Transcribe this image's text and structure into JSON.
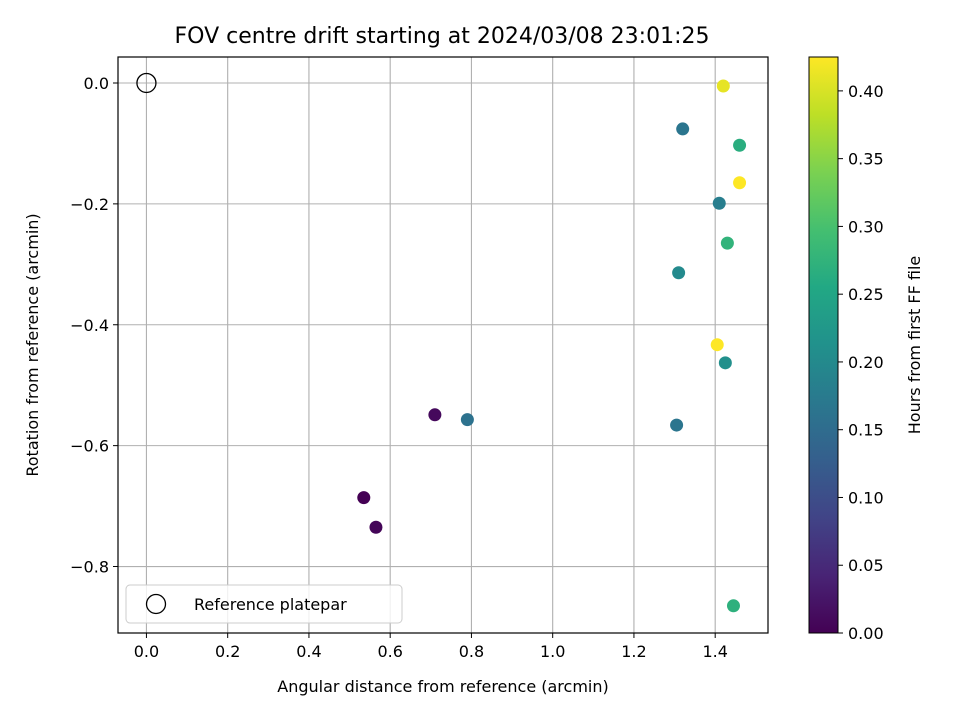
{
  "chart_data": {
    "type": "scatter",
    "title": "FOV centre drift starting at 2024/03/08 23:01:25",
    "xlabel": "Angular distance from reference (arcmin)",
    "ylabel": "Rotation from reference (arcmin)",
    "xlim": [
      -0.07,
      1.53
    ],
    "ylim": [
      -0.91,
      0.043
    ],
    "grid": true,
    "legend": {
      "placement": "lower-left",
      "entries": [
        "Reference platepar"
      ]
    },
    "xticks": [
      {
        "value": 0.0,
        "label": "0.0"
      },
      {
        "value": 0.2,
        "label": "0.2"
      },
      {
        "value": 0.4,
        "label": "0.4"
      },
      {
        "value": 0.6,
        "label": "0.6"
      },
      {
        "value": 0.8,
        "label": "0.8"
      },
      {
        "value": 1.0,
        "label": "1.0"
      },
      {
        "value": 1.2,
        "label": "1.2"
      },
      {
        "value": 1.4,
        "label": "1.4"
      }
    ],
    "yticks": [
      {
        "value": 0.0,
        "label": "0.0"
      },
      {
        "value": -0.2,
        "label": "−0.2"
      },
      {
        "value": -0.4,
        "label": "−0.4"
      },
      {
        "value": -0.6,
        "label": "−0.6"
      },
      {
        "value": -0.8,
        "label": "−0.8"
      }
    ],
    "reference": {
      "name": "Reference platepar",
      "x": 0.0,
      "y": 0.0
    },
    "colorbar": {
      "label": "Hours from first FF file",
      "colormap": "viridis",
      "range": [
        0.0,
        0.425
      ],
      "ticks": [
        {
          "value": 0.0,
          "label": "0.00"
        },
        {
          "value": 0.05,
          "label": "0.05"
        },
        {
          "value": 0.1,
          "label": "0.10"
        },
        {
          "value": 0.15,
          "label": "0.15"
        },
        {
          "value": 0.2,
          "label": "0.20"
        },
        {
          "value": 0.25,
          "label": "0.25"
        },
        {
          "value": 0.3,
          "label": "0.30"
        },
        {
          "value": 0.35,
          "label": "0.35"
        },
        {
          "value": 0.4,
          "label": "0.40"
        }
      ]
    },
    "points": [
      {
        "x": 0.535,
        "y": -0.686,
        "hours": 0.0
      },
      {
        "x": 0.565,
        "y": -0.735,
        "hours": 0.005
      },
      {
        "x": 0.71,
        "y": -0.549,
        "hours": 0.01
      },
      {
        "x": 0.79,
        "y": -0.557,
        "hours": 0.16
      },
      {
        "x": 1.305,
        "y": -0.566,
        "hours": 0.165
      },
      {
        "x": 1.32,
        "y": -0.076,
        "hours": 0.165
      },
      {
        "x": 1.41,
        "y": -0.199,
        "hours": 0.18
      },
      {
        "x": 1.31,
        "y": -0.314,
        "hours": 0.2
      },
      {
        "x": 1.425,
        "y": -0.463,
        "hours": 0.21
      },
      {
        "x": 1.46,
        "y": -0.103,
        "hours": 0.265
      },
      {
        "x": 1.43,
        "y": -0.265,
        "hours": 0.275
      },
      {
        "x": 1.445,
        "y": -0.865,
        "hours": 0.27
      },
      {
        "x": 1.42,
        "y": -0.005,
        "hours": 0.41
      },
      {
        "x": 1.46,
        "y": -0.165,
        "hours": 0.425
      },
      {
        "x": 1.405,
        "y": -0.433,
        "hours": 0.425
      }
    ]
  }
}
